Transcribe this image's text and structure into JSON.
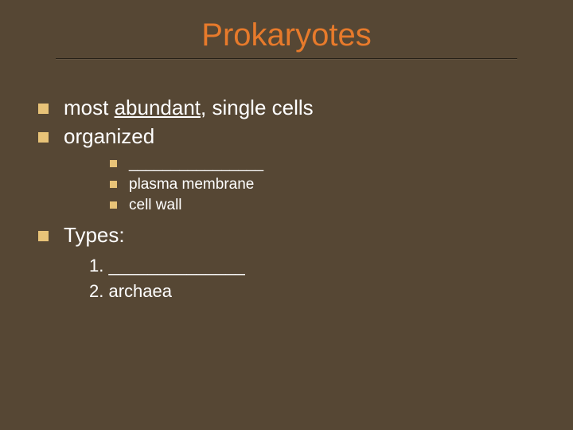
{
  "colors": {
    "background": "#564734",
    "title": "#e77a2b",
    "body_text": "#ffffff",
    "bullet_l1": "#e8c378",
    "bullet_l2": "#e8c378",
    "underline": "#1d160c"
  },
  "typography": {
    "title_fontsize": 40,
    "l1_fontsize": 26,
    "l2_fontsize": 19,
    "ol_fontsize": 22,
    "font_family": "Verdana, Geneva, sans-serif"
  },
  "title": "Prokaryotes",
  "bullets": [
    {
      "pre": "most ",
      "underlined": "abundant",
      "post": ", single cells"
    },
    {
      "text": "organized",
      "sub": [
        "________________",
        "plasma membrane",
        "cell wall"
      ]
    },
    {
      "text": "Types:",
      "numbered": [
        "______________",
        "archaea"
      ]
    }
  ]
}
